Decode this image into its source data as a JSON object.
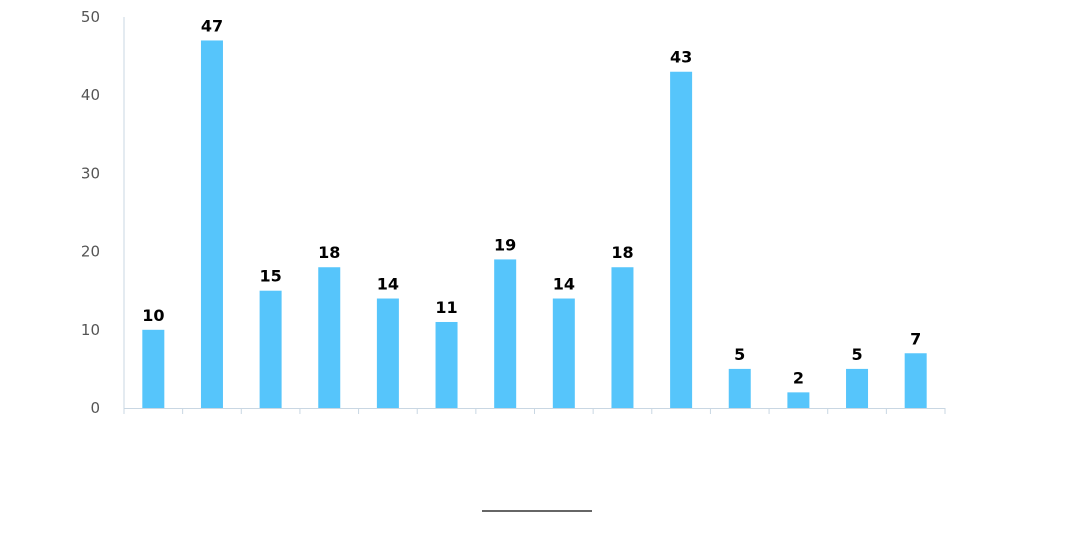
{
  "chart_data": {
    "type": "bar",
    "categories": [
      "",
      "",
      "",
      "",
      "",
      "",
      "",
      "",
      "",
      "",
      "",
      "",
      "",
      ""
    ],
    "values": [
      10,
      47,
      15,
      18,
      14,
      11,
      19,
      14,
      18,
      43,
      5,
      2,
      5,
      7
    ],
    "ylim": [
      0,
      50
    ],
    "yticks": [
      0,
      10,
      20,
      30,
      40,
      50
    ],
    "grid": false,
    "legend": "none",
    "colors": {
      "bar": "#56c5fb",
      "axis": "#c9d7e3",
      "tick_text": "#555555",
      "label_text": "#000000"
    }
  }
}
